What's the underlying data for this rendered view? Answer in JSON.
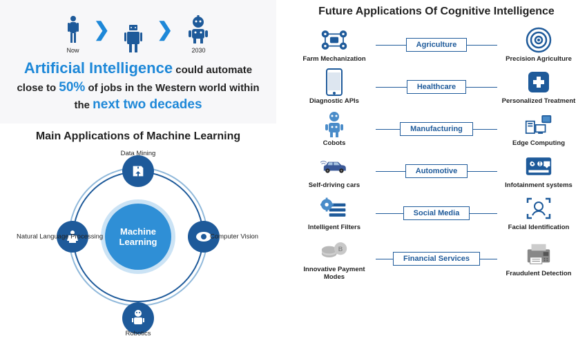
{
  "colors": {
    "primary": "#1e5a9a",
    "accent": "#2f8fd6",
    "light_bg": "#f7f7f9",
    "text": "#222222",
    "highlight": "#1e88d8"
  },
  "evolution": {
    "now_label": "Now",
    "future_label": "2030",
    "text_pre": "",
    "hl1": "Artificial Intelligence",
    "mid1": " could automate close to ",
    "hl2": "50%",
    "mid2": " of jobs in the Western world within the ",
    "hl3": "next two decades"
  },
  "ml": {
    "title": "Main Applications of Machine Learning",
    "center": "Machine Learning",
    "nodes": {
      "top": "Data Mining",
      "right": "Computer Vision",
      "bottom": "Robotics",
      "left": "Natural Language Processing"
    }
  },
  "future": {
    "title": "Future Applications Of Cognitive Intelligence",
    "rows": [
      {
        "left": "Farm Mechanization",
        "category": "Agriculture",
        "right": "Precision Agriculture"
      },
      {
        "left": "Diagnostic APIs",
        "category": "Healthcare",
        "right": "Personalized Treatment"
      },
      {
        "left": "Cobots",
        "category": "Manufacturing",
        "right": "Edge Computing"
      },
      {
        "left": "Self-driving cars",
        "category": "Automotive",
        "right": "Infotainment systems"
      },
      {
        "left": "Intelligent Filters",
        "category": "Social Media",
        "right": "Facial Identification"
      },
      {
        "left": "Innovative Payment Modes",
        "category": "Financial Services",
        "right": "Fraudulent Detection"
      }
    ]
  }
}
